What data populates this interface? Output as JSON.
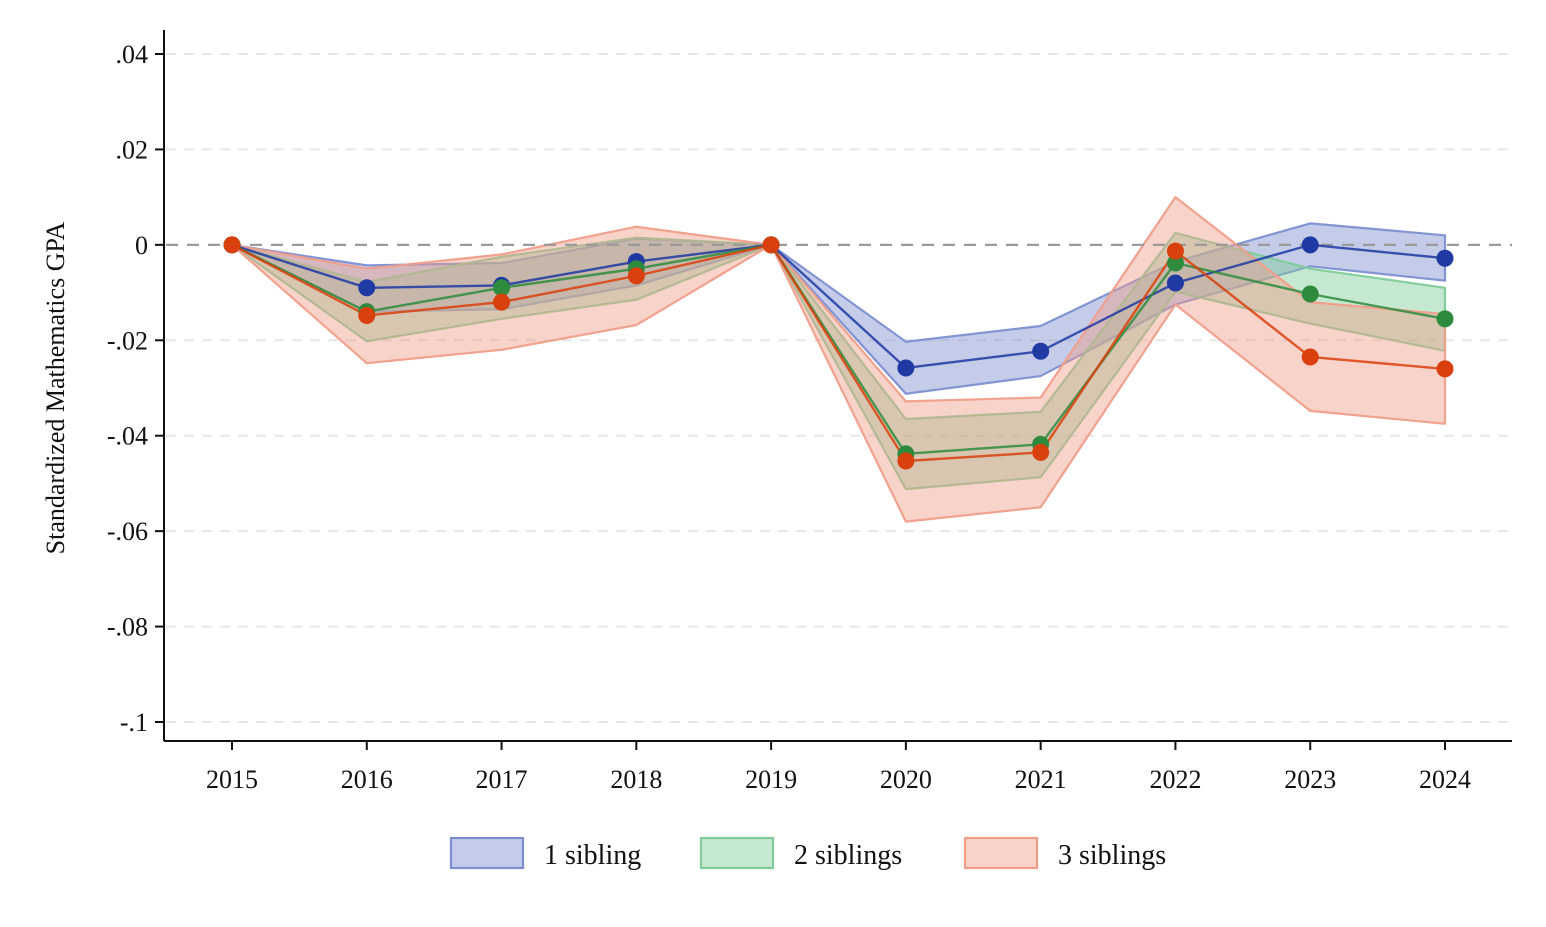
{
  "chart_data": {
    "type": "line",
    "ylabel": "Standardized Mathematics GPA",
    "xlabel": "",
    "x": [
      2015,
      2016,
      2017,
      2018,
      2019,
      2020,
      2021,
      2022,
      2023,
      2024
    ],
    "xticks": [
      "2015",
      "2016",
      "2017",
      "2018",
      "2019",
      "2020",
      "2021",
      "2022",
      "2023",
      "2024"
    ],
    "ylim": [
      -0.1,
      0.04
    ],
    "yticks": [
      {
        "value": 0.04,
        "label": ".04"
      },
      {
        "value": 0.02,
        "label": ".02"
      },
      {
        "value": 0,
        "label": "0"
      },
      {
        "value": -0.02,
        "label": "-.02"
      },
      {
        "value": -0.04,
        "label": "-.04"
      },
      {
        "value": -0.06,
        "label": "-.06"
      },
      {
        "value": -0.08,
        "label": "-.08"
      },
      {
        "value": -0.1,
        "label": "-.1"
      }
    ],
    "grid": true,
    "reference_line": 0,
    "legend_position": "bottom",
    "series": [
      {
        "name": "1 sibling",
        "line_color": "#1f3aa3",
        "fill_color": "#7d8fd1",
        "values": [
          0,
          -0.009,
          -0.0085,
          -0.0035,
          0,
          -0.0258,
          -0.0223,
          -0.008,
          0,
          -0.0028
        ],
        "lower": [
          0,
          -0.014,
          -0.0135,
          -0.0085,
          0,
          -0.0312,
          -0.0275,
          -0.0125,
          -0.0045,
          -0.0075
        ],
        "upper": [
          0,
          -0.0043,
          -0.0038,
          0.0013,
          0,
          -0.0203,
          -0.017,
          -0.0035,
          0.0045,
          0.002
        ]
      },
      {
        "name": "2 siblings",
        "line_color": "#2e8b3e",
        "fill_color": "#7fcc9a",
        "values": [
          0,
          -0.014,
          -0.009,
          -0.005,
          0,
          -0.0438,
          -0.0418,
          -0.0038,
          -0.0103,
          -0.0155
        ],
        "lower": [
          0,
          -0.0202,
          -0.0155,
          -0.0115,
          0,
          -0.0512,
          -0.0487,
          -0.0098,
          -0.0165,
          -0.0222
        ],
        "upper": [
          0,
          -0.0078,
          -0.0025,
          0.0015,
          0,
          -0.0365,
          -0.035,
          0.0025,
          -0.005,
          -0.009
        ]
      },
      {
        "name": "3 siblings",
        "line_color": "#d9400d",
        "fill_color": "#f09e8a",
        "values": [
          0,
          -0.0148,
          -0.012,
          -0.0065,
          0,
          -0.0453,
          -0.0435,
          -0.0013,
          -0.0235,
          -0.026
        ],
        "lower": [
          0,
          -0.0248,
          -0.022,
          -0.0168,
          0,
          -0.058,
          -0.055,
          -0.0125,
          -0.0348,
          -0.0375
        ],
        "upper": [
          0,
          -0.005,
          -0.002,
          0.0038,
          0,
          -0.0328,
          -0.032,
          0.01,
          -0.012,
          -0.0145
        ]
      }
    ]
  }
}
